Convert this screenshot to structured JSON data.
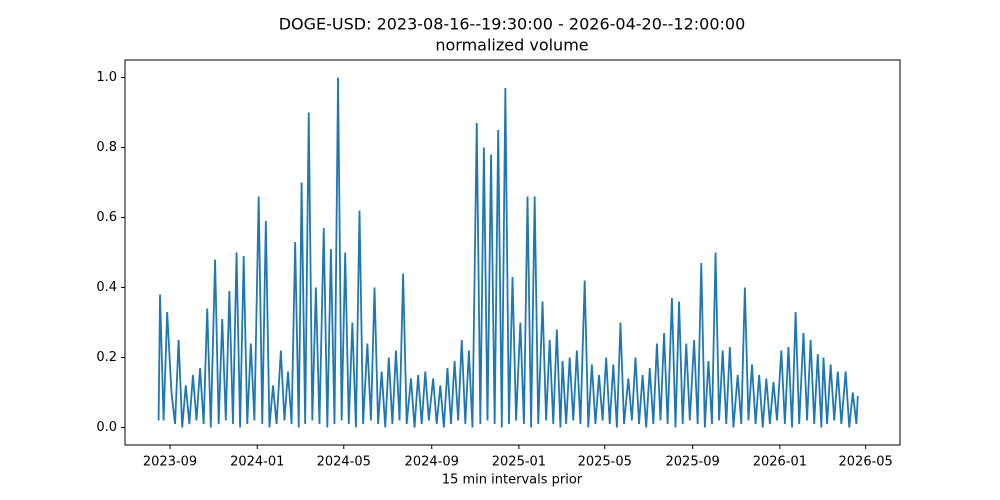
{
  "chart_data": {
    "type": "line",
    "title": "DOGE-USD: 2023-08-16--19:30:00 - 2026-04-20--12:00:00",
    "subtitle": "normalized volume",
    "x_label": "15 min intervals prior",
    "color": "#1f77b4",
    "x": [
      "2023-08-16",
      "2023-08-18",
      "2023-08-23",
      "2023-08-28",
      "2023-09-03",
      "2023-09-08",
      "2023-09-13",
      "2023-09-18",
      "2023-09-23",
      "2023-09-28",
      "2023-10-03",
      "2023-10-08",
      "2023-10-13",
      "2023-10-18",
      "2023-10-23",
      "2023-10-28",
      "2023-11-03",
      "2023-11-08",
      "2023-11-13",
      "2023-11-18",
      "2023-11-23",
      "2023-11-28",
      "2023-12-03",
      "2023-12-08",
      "2023-12-13",
      "2023-12-18",
      "2023-12-23",
      "2023-12-28",
      "2024-01-03",
      "2024-01-08",
      "2024-01-13",
      "2024-01-18",
      "2024-01-23",
      "2024-01-28",
      "2024-02-03",
      "2024-02-08",
      "2024-02-13",
      "2024-02-18",
      "2024-02-23",
      "2024-02-28",
      "2024-03-03",
      "2024-03-08",
      "2024-03-13",
      "2024-03-18",
      "2024-03-23",
      "2024-03-28",
      "2024-04-03",
      "2024-04-08",
      "2024-04-13",
      "2024-04-18",
      "2024-04-23",
      "2024-04-28",
      "2024-05-03",
      "2024-05-08",
      "2024-05-13",
      "2024-05-18",
      "2024-05-23",
      "2024-05-28",
      "2024-06-03",
      "2024-06-08",
      "2024-06-13",
      "2024-06-18",
      "2024-06-23",
      "2024-06-28",
      "2024-07-03",
      "2024-07-08",
      "2024-07-13",
      "2024-07-18",
      "2024-07-23",
      "2024-07-28",
      "2024-08-03",
      "2024-08-08",
      "2024-08-13",
      "2024-08-18",
      "2024-08-23",
      "2024-08-28",
      "2024-09-03",
      "2024-09-08",
      "2024-09-13",
      "2024-09-18",
      "2024-09-23",
      "2024-09-28",
      "2024-10-03",
      "2024-10-08",
      "2024-10-13",
      "2024-10-18",
      "2024-10-23",
      "2024-10-28",
      "2024-11-03",
      "2024-11-08",
      "2024-11-13",
      "2024-11-18",
      "2024-11-23",
      "2024-11-28",
      "2024-12-03",
      "2024-12-08",
      "2024-12-13",
      "2024-12-18",
      "2024-12-23",
      "2024-12-28",
      "2025-01-03",
      "2025-01-08",
      "2025-01-13",
      "2025-01-18",
      "2025-01-23",
      "2025-01-28",
      "2025-02-03",
      "2025-02-08",
      "2025-02-13",
      "2025-02-18",
      "2025-02-23",
      "2025-02-28",
      "2025-03-03",
      "2025-03-08",
      "2025-03-13",
      "2025-03-18",
      "2025-03-23",
      "2025-03-28",
      "2025-04-03",
      "2025-04-08",
      "2025-04-13",
      "2025-04-18",
      "2025-04-23",
      "2025-04-28",
      "2025-05-03",
      "2025-05-08",
      "2025-05-13",
      "2025-05-18",
      "2025-05-23",
      "2025-05-28",
      "2025-06-03",
      "2025-06-08",
      "2025-06-13",
      "2025-06-18",
      "2025-06-23",
      "2025-06-28",
      "2025-07-03",
      "2025-07-08",
      "2025-07-13",
      "2025-07-18",
      "2025-07-23",
      "2025-07-28",
      "2025-08-03",
      "2025-08-08",
      "2025-08-13",
      "2025-08-18",
      "2025-08-23",
      "2025-08-28",
      "2025-09-03",
      "2025-09-08",
      "2025-09-13",
      "2025-09-18",
      "2025-09-23",
      "2025-09-28",
      "2025-10-03",
      "2025-10-08",
      "2025-10-13",
      "2025-10-18",
      "2025-10-23",
      "2025-10-28",
      "2025-11-03",
      "2025-11-08",
      "2025-11-13",
      "2025-11-18",
      "2025-11-23",
      "2025-11-28",
      "2025-12-03",
      "2025-12-08",
      "2025-12-13",
      "2025-12-18",
      "2025-12-23",
      "2025-12-28",
      "2026-01-03",
      "2026-01-08",
      "2026-01-13",
      "2026-01-18",
      "2026-01-23",
      "2026-01-28",
      "2026-02-03",
      "2026-02-08",
      "2026-02-13",
      "2026-02-18",
      "2026-02-23",
      "2026-02-28",
      "2026-03-03",
      "2026-03-08",
      "2026-03-13",
      "2026-03-18",
      "2026-03-23",
      "2026-03-28",
      "2026-04-03",
      "2026-04-08",
      "2026-04-13",
      "2026-04-18",
      "2026-04-20"
    ],
    "values": [
      0.02,
      0.38,
      0.02,
      0.33,
      0.1,
      0.01,
      0.25,
      0.0,
      0.12,
      0.01,
      0.15,
      0.02,
      0.17,
      0.01,
      0.34,
      0.0,
      0.48,
      0.01,
      0.31,
      0.02,
      0.39,
      0.01,
      0.5,
      0.0,
      0.49,
      0.01,
      0.24,
      0.02,
      0.66,
      0.01,
      0.59,
      0.0,
      0.12,
      0.01,
      0.22,
      0.02,
      0.16,
      0.01,
      0.53,
      0.0,
      0.7,
      0.01,
      0.9,
      0.02,
      0.4,
      0.01,
      0.57,
      0.0,
      0.51,
      0.01,
      1.0,
      0.02,
      0.5,
      0.01,
      0.3,
      0.0,
      0.62,
      0.01,
      0.24,
      0.02,
      0.4,
      0.01,
      0.16,
      0.0,
      0.2,
      0.01,
      0.22,
      0.02,
      0.44,
      0.01,
      0.14,
      0.0,
      0.15,
      0.01,
      0.16,
      0.02,
      0.14,
      0.01,
      0.12,
      0.0,
      0.17,
      0.01,
      0.19,
      0.02,
      0.25,
      0.01,
      0.22,
      0.0,
      0.87,
      0.01,
      0.8,
      0.02,
      0.78,
      0.01,
      0.85,
      0.0,
      0.97,
      0.01,
      0.43,
      0.02,
      0.3,
      0.01,
      0.66,
      0.0,
      0.66,
      0.01,
      0.36,
      0.02,
      0.25,
      0.01,
      0.28,
      0.0,
      0.19,
      0.01,
      0.2,
      0.02,
      0.22,
      0.01,
      0.42,
      0.0,
      0.18,
      0.01,
      0.15,
      0.02,
      0.2,
      0.01,
      0.18,
      0.0,
      0.3,
      0.01,
      0.14,
      0.02,
      0.2,
      0.01,
      0.15,
      0.0,
      0.17,
      0.01,
      0.24,
      0.02,
      0.27,
      0.01,
      0.37,
      0.0,
      0.36,
      0.01,
      0.24,
      0.02,
      0.25,
      0.01,
      0.47,
      0.0,
      0.19,
      0.01,
      0.5,
      0.02,
      0.22,
      0.01,
      0.23,
      0.0,
      0.15,
      0.01,
      0.4,
      0.02,
      0.18,
      0.01,
      0.15,
      0.0,
      0.14,
      0.01,
      0.13,
      0.02,
      0.22,
      0.01,
      0.23,
      0.0,
      0.33,
      0.01,
      0.27,
      0.02,
      0.25,
      0.01,
      0.21,
      0.0,
      0.2,
      0.01,
      0.18,
      0.02,
      0.16,
      0.01,
      0.16,
      0.0,
      0.1,
      0.01,
      0.09
    ],
    "xlim": [
      "2023-06-30",
      "2026-06-18"
    ],
    "xticks": [
      {
        "value": "2023-09-01",
        "label": "2023-09"
      },
      {
        "value": "2024-01-01",
        "label": "2024-01"
      },
      {
        "value": "2024-05-01",
        "label": "2024-05"
      },
      {
        "value": "2024-09-01",
        "label": "2024-09"
      },
      {
        "value": "2025-01-01",
        "label": "2025-01"
      },
      {
        "value": "2025-05-01",
        "label": "2025-05"
      },
      {
        "value": "2025-09-01",
        "label": "2025-09"
      },
      {
        "value": "2026-01-01",
        "label": "2026-01"
      },
      {
        "value": "2026-05-01",
        "label": "2026-05"
      }
    ],
    "ylim": [
      -0.05,
      1.05
    ],
    "yticks": [
      {
        "value": 0,
        "label": "0.0"
      },
      0.2,
      0.4,
      0.6,
      0.8,
      {
        "value": 1,
        "label": "1.0"
      }
    ],
    "grid": false
  }
}
